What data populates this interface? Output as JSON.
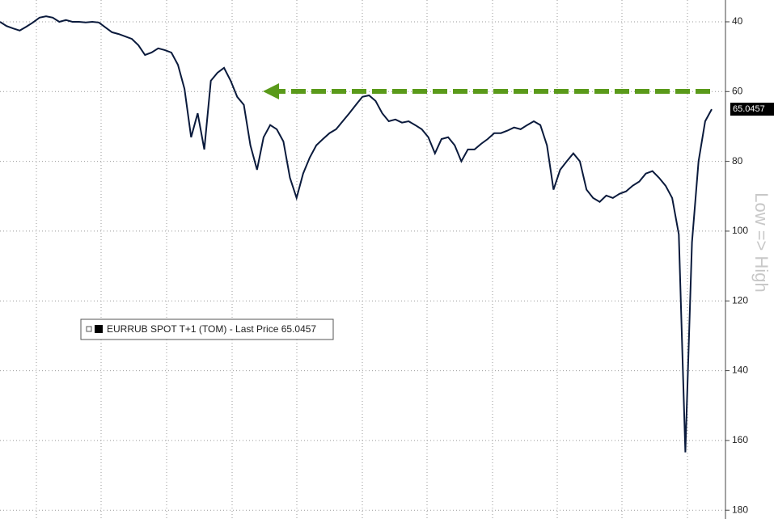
{
  "chart_data": {
    "type": "line",
    "annotation": "Low => High",
    "invert_y": true,
    "grid": true,
    "ylim": [
      33.75,
      182.5
    ],
    "yticks": [
      40,
      60,
      80,
      100,
      120,
      140,
      160,
      180
    ],
    "series": [
      {
        "name": "EURRUB SPOT T+1 (TOM) - Last Price 65.0457",
        "color": "#0a1a3c",
        "values": [
          40,
          41.2,
          41.9,
          42.5,
          41.4,
          40.2,
          38.8,
          38.4,
          38.8,
          40,
          39.5,
          40,
          40,
          40.2,
          40,
          40.2,
          41.6,
          43,
          43.5,
          44.2,
          44.9,
          46.7,
          49.5,
          48.8,
          47.6,
          48.1,
          48.8,
          52.3,
          59.2,
          73.1,
          66.2,
          76.6,
          56.9,
          54.6,
          53.2,
          56.9,
          61.5,
          63.8,
          75.4,
          82.4,
          73.1,
          69.6,
          70.8,
          74.3,
          84.7,
          90.5,
          83.5,
          78.9,
          75.4,
          73.6,
          71.9,
          70.8,
          68.5,
          66.2,
          63.8,
          61.5,
          61.1,
          62.7,
          66.2,
          68.5,
          68,
          68.9,
          68.5,
          69.6,
          70.8,
          73.1,
          77.7,
          73.6,
          73.1,
          75.4,
          80,
          76.6,
          76.6,
          75,
          73.6,
          71.9,
          71.9,
          71.2,
          70.3,
          70.8,
          69.6,
          68.5,
          69.6,
          75.4,
          88.1,
          82.4,
          80,
          77.7,
          80,
          88.1,
          90.5,
          91.6,
          89.8,
          90.5,
          89.3,
          88.6,
          87,
          85.8,
          83.5,
          82.8,
          84.7,
          87,
          90.5,
          100.9,
          163.4,
          103.2,
          80,
          68.5,
          65.0457
        ]
      }
    ]
  }
}
